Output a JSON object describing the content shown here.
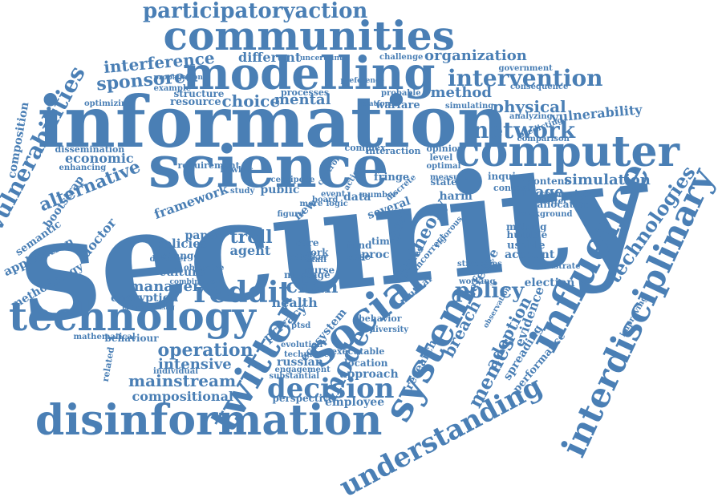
{
  "color": "#4a7fb5",
  "words": [
    "security",
    "information",
    "science",
    "computer",
    "modelling",
    "communities",
    "disinformation",
    "technology",
    "social",
    "twitter",
    "system",
    "influence",
    "interdisciplinary",
    "understanding",
    "participatoryaction",
    "intervention",
    "network",
    "reddit",
    "decision",
    "model",
    "troll",
    "chan",
    "policy",
    "memes",
    "operation",
    "mainstream",
    "sponsored",
    "interference",
    "organization",
    "choice",
    "mental",
    "method",
    "physical",
    "vulnerability",
    "simulation",
    "image",
    "campaign",
    "technologies",
    "alternative",
    "economic",
    "vulnerabilities",
    "composition",
    "bootstrap",
    "semantic",
    "application",
    "methodology",
    "manager",
    "encryption",
    "policies",
    "change",
    "agent",
    "health",
    "intensive",
    "compositional",
    "russian",
    "employee",
    "adoption",
    "evidence",
    "breach",
    "research",
    "election",
    "account",
    "usable",
    "humble",
    "making",
    "allocation",
    "content",
    "inquiry",
    "context",
    "different",
    "resource",
    "structure",
    "processes",
    "warfare",
    "probable",
    "challenge",
    "government",
    "consequence",
    "analyzing",
    "predicting",
    "simulating",
    "approach",
    "location",
    "executable",
    "ecosystem",
    "privacy",
    "perspective",
    "substantial",
    "behaviour",
    "mathematical",
    "paper",
    "culture",
    "proc",
    "time",
    "fringe",
    "data",
    "fund",
    "case",
    "work",
    "staff",
    "care",
    "nurse",
    "harm",
    "state",
    "theory",
    "post",
    "new",
    "several",
    "measure",
    "opinion",
    "complex",
    "interaction",
    "dissemination",
    "enhancing",
    "optimizing",
    "example",
    "propagation",
    "uncertainty",
    "preference",
    "platform",
    "doctor",
    "framework",
    "requirement",
    "study",
    "public",
    "centipede",
    "disorder",
    "objective",
    "combination",
    "characterizing",
    "related",
    "message",
    "behavior",
    "spreading",
    "performance",
    "defence",
    "working",
    "strategies",
    "illustrate",
    "background",
    "better",
    "discrete",
    "optimal",
    "level",
    "number",
    "action",
    "board",
    "more",
    "logic",
    "event",
    "control",
    "figure",
    "attacker",
    "ptsd",
    "hawkes",
    "mutual",
    "equities",
    "incorrect",
    "rigorous",
    "evolution",
    "technique",
    "engagement",
    "individual",
    "diversity",
    "observation",
    "comparison",
    "improving"
  ]
}
